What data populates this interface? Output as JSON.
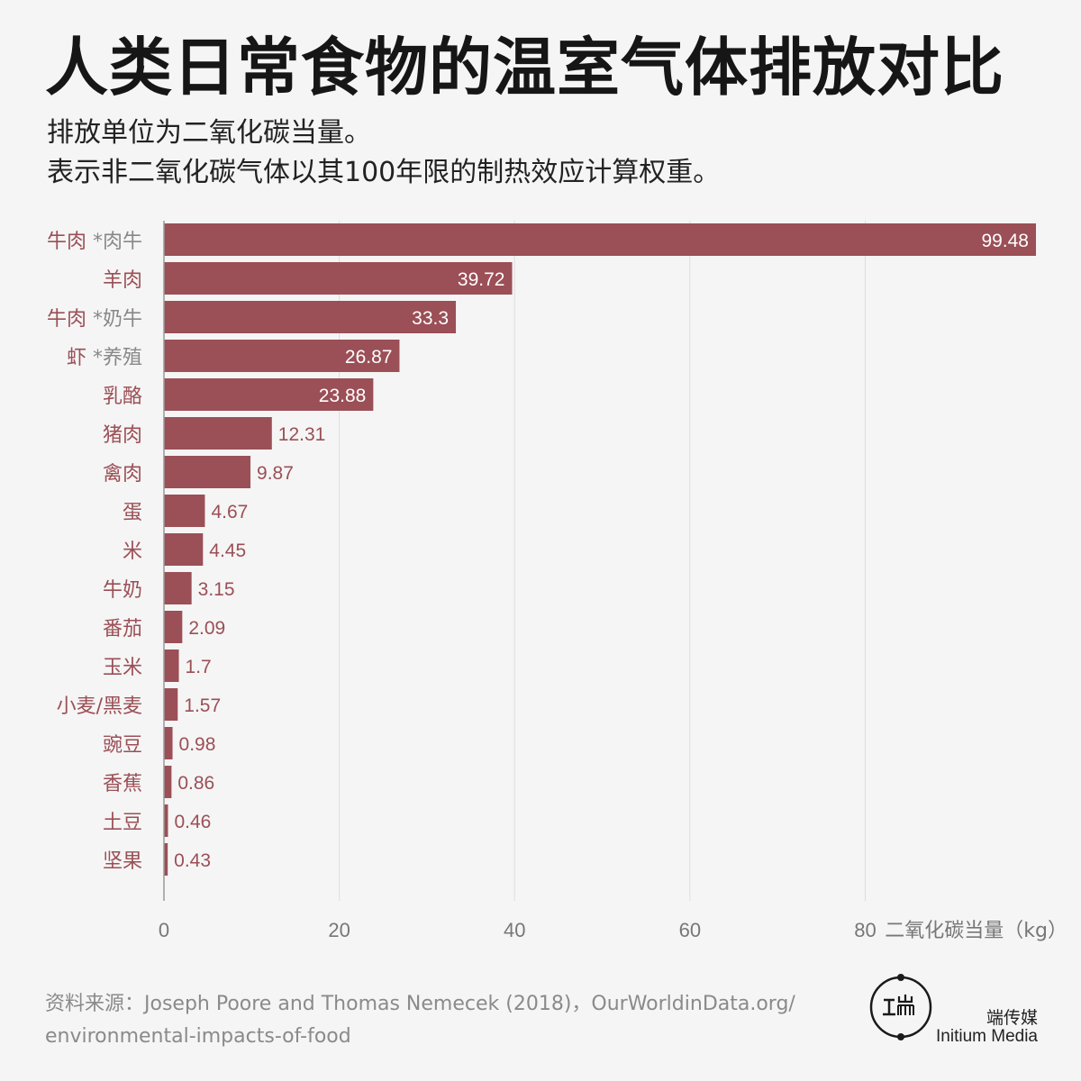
{
  "title": "人类日常食物的温室气体排放对比",
  "subtitle_line1": "排放单位为二氧化碳当量。",
  "subtitle_line2": "表示非二氧化碳气体以其100年限的制热效应计算权重。",
  "source": "资料来源：Joseph Poore and Thomas Nemecek (2018)，OurWorldinData.org/ environmental-impacts-of-food",
  "brand": {
    "cn": "端传媒",
    "en": "Initium Media"
  },
  "colors": {
    "bar": "#9b4f56",
    "label": "#9b4f56",
    "axis_text": "#777777",
    "grid": "#dddddd",
    "value_inside": "#ffffff"
  },
  "chart_data": {
    "type": "bar",
    "orientation": "horizontal",
    "xlabel": "二氧化碳当量（kg）",
    "xlim": [
      0,
      100
    ],
    "xticks": [
      0,
      20,
      40,
      60,
      80
    ],
    "grid": true,
    "categories": [
      {
        "name": "牛肉",
        "note": "*肉牛"
      },
      {
        "name": "羊肉",
        "note": ""
      },
      {
        "name": "牛肉",
        "note": "*奶牛"
      },
      {
        "name": "虾",
        "note": "*养殖"
      },
      {
        "name": "乳酪",
        "note": ""
      },
      {
        "name": "猪肉",
        "note": ""
      },
      {
        "name": "禽肉",
        "note": ""
      },
      {
        "name": "蛋",
        "note": ""
      },
      {
        "name": "米",
        "note": ""
      },
      {
        "name": "牛奶",
        "note": ""
      },
      {
        "name": "番茄",
        "note": ""
      },
      {
        "name": "玉米",
        "note": ""
      },
      {
        "name": "小麦/黑麦",
        "note": ""
      },
      {
        "name": "豌豆",
        "note": ""
      },
      {
        "name": "香蕉",
        "note": ""
      },
      {
        "name": "土豆",
        "note": ""
      },
      {
        "name": "坚果",
        "note": ""
      }
    ],
    "values": [
      99.48,
      39.72,
      33.3,
      26.87,
      23.88,
      12.31,
      9.87,
      4.67,
      4.45,
      3.15,
      2.09,
      1.7,
      1.57,
      0.98,
      0.86,
      0.46,
      0.43
    ]
  }
}
